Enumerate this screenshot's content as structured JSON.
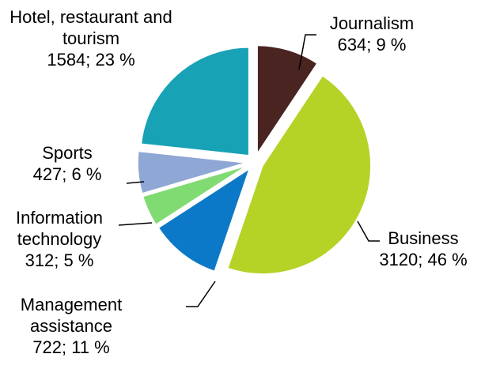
{
  "chart_data": {
    "type": "pie",
    "categories": [
      "Journalism",
      "Business",
      "Management assistance",
      "Information technology",
      "Sports",
      "Hotel, restaurant and tourism"
    ],
    "values": [
      634,
      3120,
      722,
      312,
      427,
      1584
    ],
    "value_labels": [
      "634; 9 %",
      "3120; 46 %",
      "722; 11 %",
      "312; 5 %",
      "427; 6 %",
      "1584; 23 %"
    ],
    "colors": [
      "#4a2421",
      "#b5d327",
      "#0b79c7",
      "#7fdb72",
      "#8fa7d5",
      "#17a2b5"
    ]
  }
}
